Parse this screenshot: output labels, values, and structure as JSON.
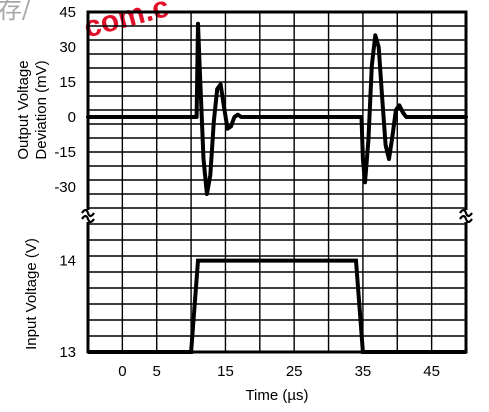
{
  "watermark": {
    "text": "com.c",
    "prefix": "存/"
  },
  "chart_data": {
    "type": "line",
    "x": {
      "label": "Time (µs)",
      "ticks": [
        0,
        5,
        15,
        25,
        35,
        45
      ],
      "range": [
        -5,
        50
      ]
    },
    "panels": [
      {
        "name": "output_deviation",
        "ylabel_lines": [
          "Output Voltage",
          "Deviation (mV)"
        ],
        "ticks": [
          45,
          30,
          15,
          0,
          -15,
          -30
        ],
        "range": [
          -39,
          45
        ],
        "series": {
          "x": [
            -5,
            10.8,
            11.0,
            11.3,
            11.8,
            12.3,
            12.8,
            13.3,
            13.8,
            14.3,
            14.8,
            15.3,
            15.8,
            16.3,
            16.8,
            17.3,
            18.3,
            34.8,
            35.0,
            35.3,
            35.8,
            36.3,
            36.8,
            37.3,
            37.8,
            38.3,
            38.8,
            39.3,
            39.8,
            40.3,
            40.8,
            41.3,
            42.3,
            50
          ],
          "y": [
            0,
            0,
            40,
            18,
            -18,
            -33,
            -25,
            -2,
            12,
            14,
            4,
            -5,
            -4,
            0,
            1,
            0,
            0,
            0,
            -18,
            -28,
            -10,
            22,
            35,
            30,
            8,
            -12,
            -18,
            -8,
            3,
            5,
            2,
            0,
            0,
            0
          ]
        }
      },
      {
        "name": "input_voltage",
        "ylabel": "Input Voltage (V)",
        "ticks": [
          14,
          13
        ],
        "range": [
          13,
          14.4
        ],
        "series": {
          "x": [
            -5,
            10,
            11,
            34,
            35,
            50
          ],
          "y": [
            13,
            13,
            14,
            14,
            13,
            13
          ]
        }
      }
    ],
    "grid": true
  }
}
